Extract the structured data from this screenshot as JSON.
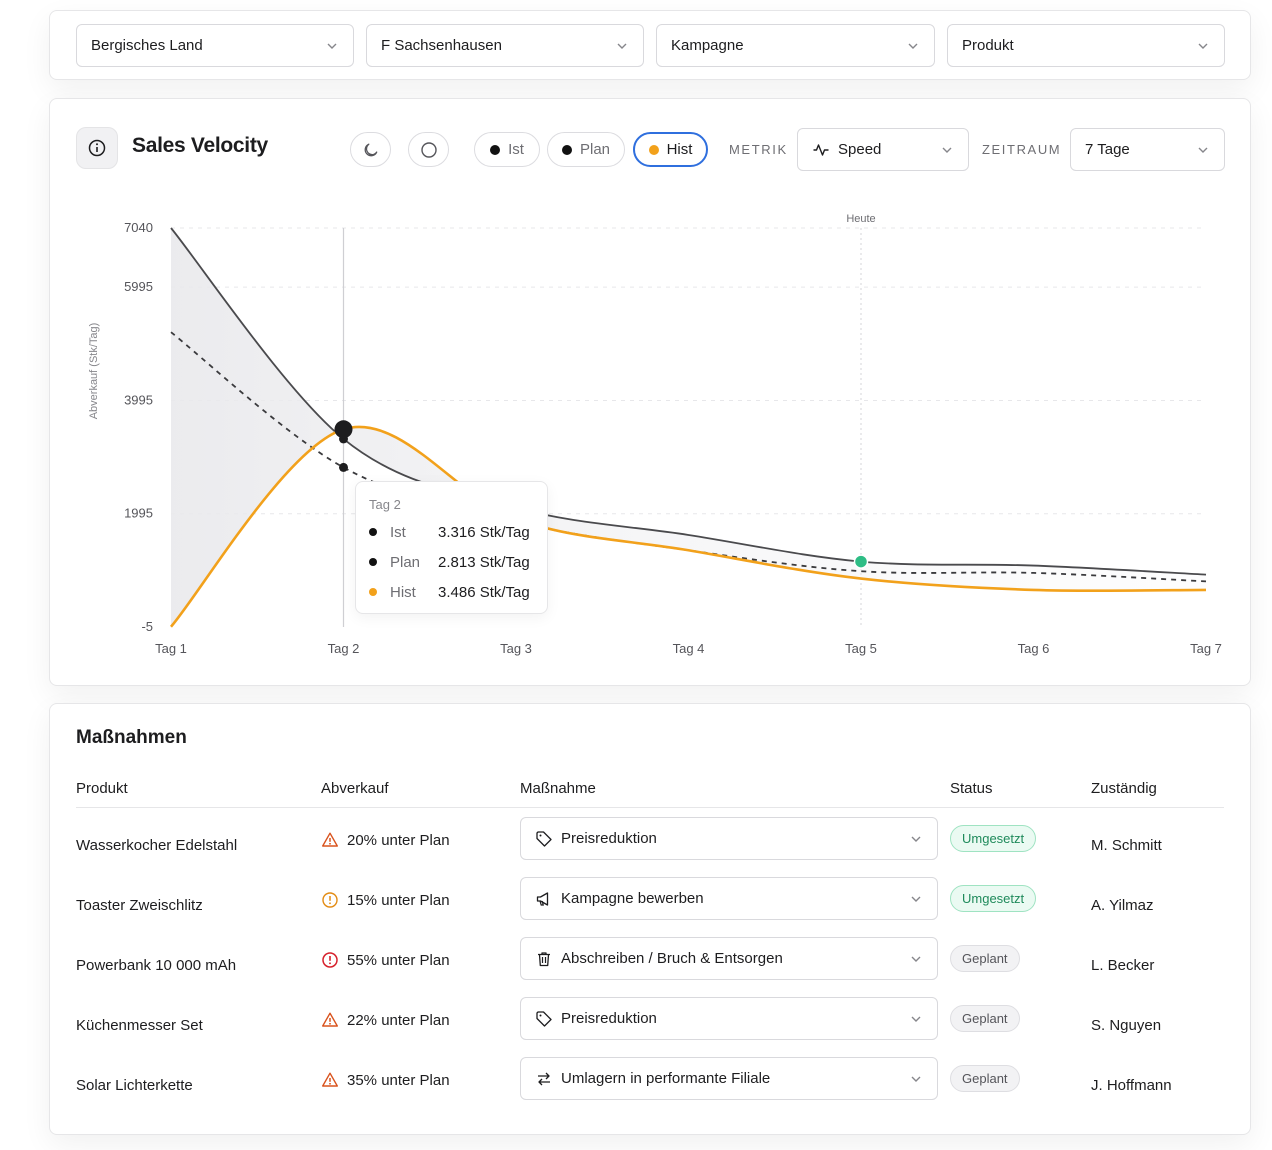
{
  "filters": [
    {
      "value": "Bergisches Land"
    },
    {
      "value": "F Sachsenhausen"
    },
    {
      "value": "Kampagne"
    },
    {
      "value": "Produkt"
    }
  ],
  "header": {
    "title": "Sales Velocity",
    "toggles": [
      {
        "label": "Ist",
        "color": "#111111"
      },
      {
        "label": "Plan",
        "color": "#111111"
      },
      {
        "label": "Hist",
        "color": "#f2a11b"
      }
    ],
    "metric_label": "METRIK",
    "metric_value": "Speed",
    "period_label": "ZEITRAUM",
    "period_value": "7 Tage"
  },
  "chart_data": {
    "type": "line",
    "ylabel": "Abverkauf (Stk/Tag)",
    "y_ticks": [
      "7040",
      "5995",
      "3995",
      "1995",
      "-5"
    ],
    "y_tick_values": [
      7040,
      5995,
      3995,
      1995,
      -5
    ],
    "ylim": [
      -5,
      7040
    ],
    "categories": [
      "Tag 1",
      "Tag 2",
      "Tag 3",
      "Tag 4",
      "Tag 5",
      "Tag 6",
      "Tag 7"
    ],
    "today_label": "Heute",
    "today_index": 4,
    "selected_index": 1,
    "series": [
      {
        "name": "Ist",
        "style": "solid",
        "color": "#4a4a4d",
        "values": [
          7040,
          3316,
          2100,
          1620,
          1150,
          1080,
          920
        ]
      },
      {
        "name": "Plan",
        "style": "dashed",
        "color": "#3a3a3d",
        "values": [
          5200,
          2813,
          1850,
          1350,
          980,
          950,
          800
        ]
      },
      {
        "name": "Hist",
        "style": "solid",
        "color": "#f2a11b",
        "values": [
          0,
          3486,
          1900,
          1350,
          850,
          650,
          650
        ]
      }
    ],
    "grid": true
  },
  "tooltip": {
    "title": "Tag 2",
    "rows": [
      {
        "name": "Ist",
        "value": "3.316 Stk/Tag",
        "color": "#111111"
      },
      {
        "name": "Plan",
        "value": "2.813 Stk/Tag",
        "color": "#111111"
      },
      {
        "name": "Hist",
        "value": "3.486 Stk/Tag",
        "color": "#f2a11b"
      }
    ]
  },
  "table": {
    "title": "Maßnahmen",
    "columns": [
      "Produkt",
      "Abverkauf",
      "Maßnahme",
      "Status",
      "Zuständig"
    ],
    "rows": [
      {
        "product": "Wasserkocher Edelstahl",
        "sales": "20% unter Plan",
        "sales_icon": "warning-triangle-icon",
        "action": "Preisreduktion",
        "action_icon": "tag-icon",
        "status": "Umgesetzt",
        "owner": "M. Schmitt"
      },
      {
        "product": "Toaster Zweischlitz",
        "sales": "15% unter Plan",
        "sales_icon": "info-circle-icon",
        "action": "Kampagne bewerben",
        "action_icon": "megaphone-icon",
        "status": "Umgesetzt",
        "owner": "A. Yilmaz"
      },
      {
        "product": "Powerbank 10 000 mAh",
        "sales": "55% unter Plan",
        "sales_icon": "error-circle-icon",
        "action": "Abschreiben / Bruch & Entsorgen",
        "action_icon": "trash-icon",
        "status": "Geplant",
        "owner": "L. Becker"
      },
      {
        "product": "Küchenmesser Set",
        "sales": "22% unter Plan",
        "sales_icon": "warning-triangle-icon",
        "action": "Preisreduktion",
        "action_icon": "tag-icon",
        "status": "Geplant",
        "owner": "S. Nguyen"
      },
      {
        "product": "Solar Lichterkette",
        "sales": "35% unter Plan",
        "sales_icon": "warning-triangle-icon",
        "action": "Umlagern in performante Filiale",
        "action_icon": "transfer-arrows-icon",
        "status": "Geplant",
        "owner": "J. Hoffmann"
      }
    ]
  }
}
